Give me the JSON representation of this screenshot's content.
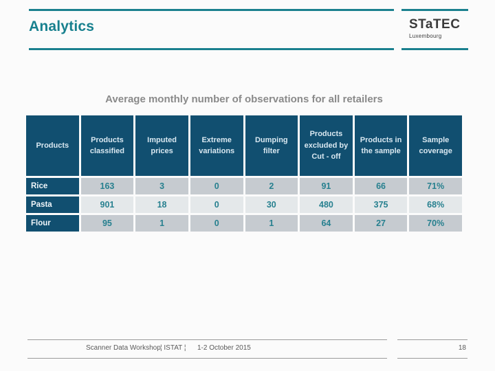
{
  "slide": {
    "title": "Analytics",
    "subtitle": "Average monthly number of observations for all retailers",
    "logo": {
      "word": "STaTEC",
      "sub": "Luxembourg"
    },
    "footer": {
      "workshop": "Scanner Data Workshop",
      "istat": "¦ ISTAT ¦",
      "date": "1-2 October 2015",
      "page": "18"
    }
  },
  "colors": {
    "accent_teal": "#1a808e",
    "title_teal": "#17808e",
    "table_header_bg": "#114f70",
    "row_dark_bg": "#c6cbd0",
    "row_light_bg": "#e4e8ea",
    "value_teal": "#27808f",
    "subtitle_gray": "#8a8a8a",
    "footer_gray": "#595959",
    "logo_dark": "#3a3a3a"
  },
  "table": {
    "columns": [
      "Products",
      "Products classified",
      "Imputed prices",
      "Extreme variations",
      "Dumping filter",
      "Products excluded by Cut - off",
      "Products in the sample",
      "Sample coverage"
    ],
    "rows": [
      {
        "label": "Rice",
        "values": [
          "163",
          "3",
          "0",
          "2",
          "91",
          "66",
          "71%"
        ]
      },
      {
        "label": "Pasta",
        "values": [
          "901",
          "18",
          "0",
          "30",
          "480",
          "375",
          "68%"
        ]
      },
      {
        "label": "Flour",
        "values": [
          "95",
          "1",
          "0",
          "1",
          "64",
          "27",
          "70%"
        ]
      }
    ]
  }
}
